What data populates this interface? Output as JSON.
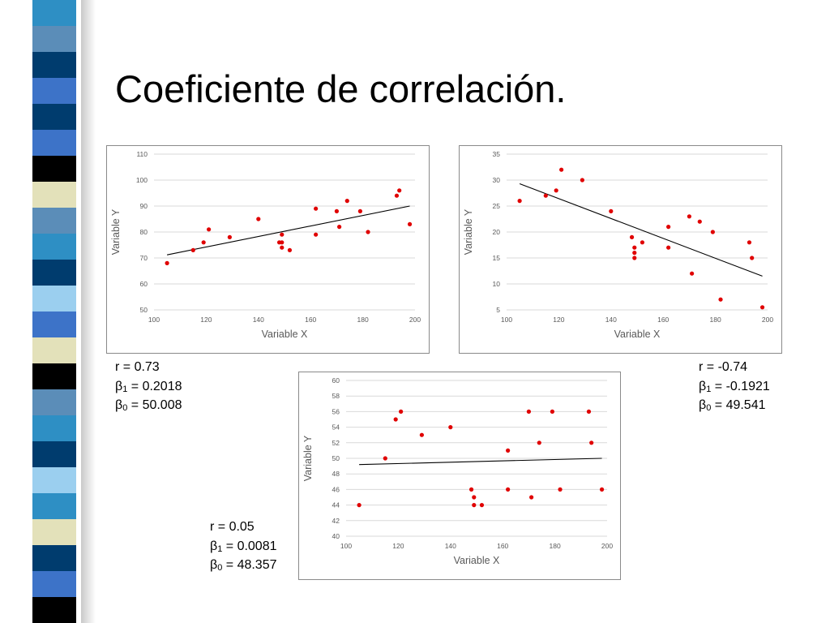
{
  "slide": {
    "title": "Coeficiente de correlación."
  },
  "decoration": {
    "band_colors": [
      "#2e8fc4",
      "#5b8db8",
      "#003c6e",
      "#3d73c8",
      "#003c6e",
      "#3d73c8",
      "#000000",
      "#e3e1ba",
      "#5b8db8",
      "#2e8fc4",
      "#003c6e",
      "#9bcfef",
      "#3d73c8",
      "#e3e1ba",
      "#000000",
      "#5b8db8",
      "#2e8fc4",
      "#003c6e",
      "#9bcfef",
      "#2e8fc4",
      "#e3e1ba",
      "#003c6e",
      "#3d73c8",
      "#000000"
    ]
  },
  "chart_data": [
    {
      "type": "scatter",
      "title": "",
      "xlabel": "Variable X",
      "ylabel": "Variable Y",
      "xlim": [
        100,
        200
      ],
      "ylim": [
        50,
        110
      ],
      "xticks": [
        "100",
        "120",
        "140",
        "160",
        "180",
        "200"
      ],
      "yticks": [
        "50",
        "60",
        "70",
        "80",
        "90",
        "100",
        "110"
      ],
      "grid": "horizontal",
      "point_color": "#e00000",
      "x": [
        105,
        115,
        119,
        121,
        129,
        140,
        148,
        149,
        149,
        149,
        152,
        162,
        162,
        170,
        171,
        174,
        179,
        182,
        193,
        194,
        198
      ],
      "y": [
        68,
        73,
        76,
        81,
        78,
        85,
        76,
        76,
        79,
        74,
        73,
        89,
        79,
        88,
        82,
        92,
        88,
        80,
        94,
        96,
        83
      ],
      "trendline": {
        "x": [
          105,
          198
        ],
        "y": [
          71.2,
          90.0
        ]
      },
      "stats": {
        "r": "r = 0.73",
        "b1_prefix": "β",
        "b1_sub": "1",
        "b1_value": " = 0.2018",
        "b0_prefix": "β",
        "b0_sub": "0",
        "b0_value": " = 50.008"
      }
    },
    {
      "type": "scatter",
      "title": "",
      "xlabel": "Variable X",
      "ylabel": "Variable Y",
      "xlim": [
        100,
        200
      ],
      "ylim": [
        5,
        35
      ],
      "xticks": [
        "100",
        "120",
        "140",
        "160",
        "180",
        "200"
      ],
      "yticks": [
        "5",
        "10",
        "15",
        "20",
        "25",
        "30",
        "35"
      ],
      "grid": "horizontal",
      "point_color": "#e00000",
      "x": [
        105,
        115,
        119,
        121,
        129,
        140,
        148,
        149,
        149,
        149,
        152,
        162,
        162,
        170,
        171,
        174,
        179,
        182,
        193,
        194,
        198
      ],
      "y": [
        26,
        27,
        28,
        32,
        30,
        24,
        19,
        17,
        16,
        15,
        18,
        21,
        17,
        23,
        12,
        22,
        20,
        7,
        18,
        15,
        5.5
      ],
      "trendline": {
        "x": [
          105,
          198
        ],
        "y": [
          29.3,
          11.5
        ]
      },
      "stats": {
        "r": "r = -0.74",
        "b1_prefix": "β",
        "b1_sub": "1",
        "b1_value": " = -0.1921",
        "b0_prefix": "β",
        "b0_sub": "0",
        "b0_value": " = 49.541"
      }
    },
    {
      "type": "scatter",
      "title": "",
      "xlabel": "Variable X",
      "ylabel": "Variable Y",
      "xlim": [
        100,
        200
      ],
      "ylim": [
        40,
        60
      ],
      "xticks": [
        "100",
        "120",
        "140",
        "160",
        "180",
        "200"
      ],
      "yticks": [
        "40",
        "42",
        "44",
        "46",
        "48",
        "50",
        "52",
        "54",
        "56",
        "58",
        "60"
      ],
      "grid": "horizontal",
      "point_color": "#e00000",
      "x": [
        105,
        115,
        119,
        121,
        129,
        140,
        148,
        149,
        149,
        152,
        162,
        162,
        170,
        171,
        174,
        179,
        182,
        193,
        194,
        198
      ],
      "y": [
        44,
        50,
        55,
        56,
        53,
        54,
        46,
        45,
        44,
        44,
        51,
        46,
        56,
        45,
        52,
        56,
        46,
        56,
        52,
        46
      ],
      "trendline": {
        "x": [
          105,
          198
        ],
        "y": [
          49.2,
          50.0
        ]
      },
      "stats": {
        "r": "r = 0.05",
        "b1_prefix": "β",
        "b1_sub": "1",
        "b1_value": " = 0.0081",
        "b0_prefix": "β",
        "b0_sub": "0",
        "b0_value": " = 48.357"
      }
    }
  ]
}
